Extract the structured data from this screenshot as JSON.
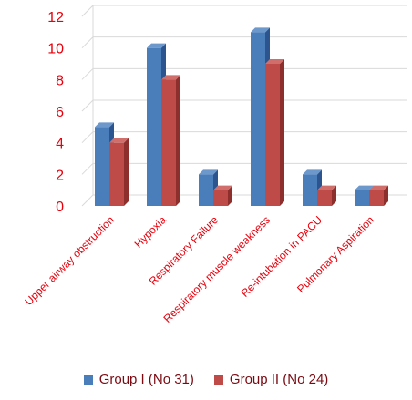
{
  "chart_data": {
    "type": "bar",
    "categories": [
      "Upper airway obstruction",
      "Hypoxia",
      "Respiratory Failure",
      "Respiratory muscle weakness",
      "Re-intubation in PACU",
      "Pulmonary Aspiration"
    ],
    "series": [
      {
        "name": "Group I (No 31)",
        "values": [
          5,
          10,
          2,
          11,
          2,
          1
        ]
      },
      {
        "name": "Group II (No 24)",
        "values": [
          4,
          8,
          1,
          9,
          1,
          1
        ]
      }
    ],
    "yticks": [
      "0",
      "2",
      "4",
      "6",
      "8",
      "10",
      "12"
    ],
    "ylim": [
      0,
      12
    ],
    "grid": true,
    "legend_position": "bottom"
  },
  "colors": {
    "series1_front": "#4a7ebb",
    "series1_side": "#2c5590",
    "series1_top": "#6d98cc",
    "series2_front": "#be4b48",
    "series2_side": "#8c2f2d",
    "series2_top": "#cf6e6b",
    "axis_text": "#e8000c",
    "legend_text": "#7a0a12",
    "gridline": "#d9d9d9"
  }
}
